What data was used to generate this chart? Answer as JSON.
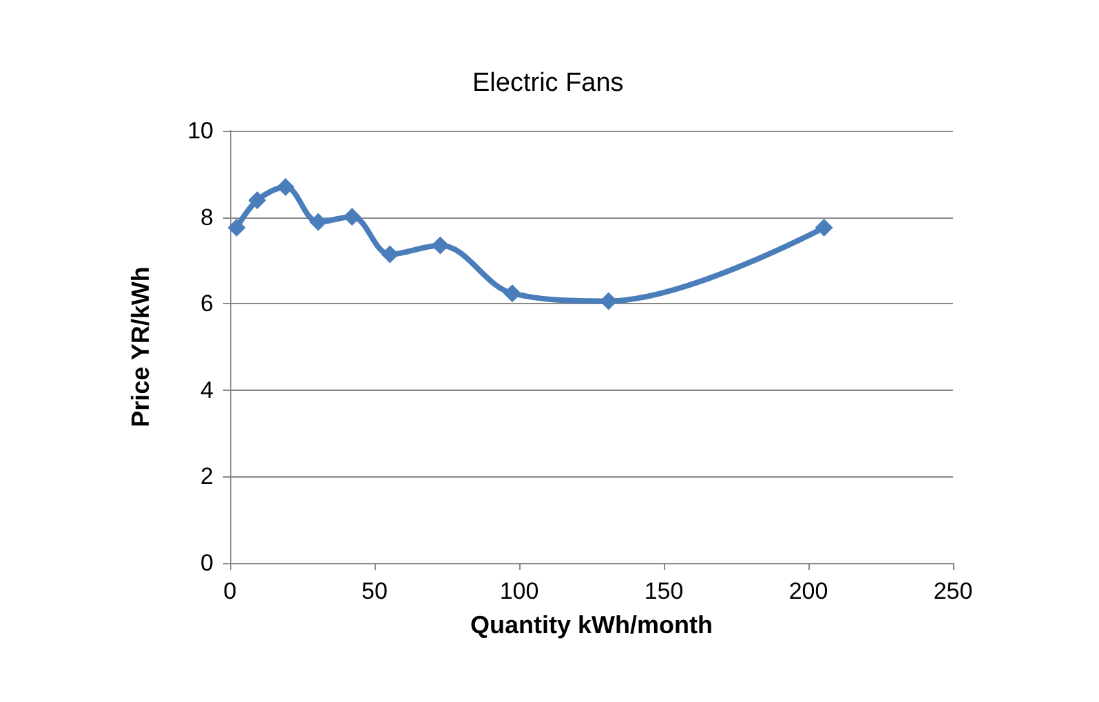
{
  "chart_data": {
    "type": "line",
    "title": "Electric Fans",
    "xlabel": "Quantity kWh/month",
    "ylabel": "Price YR/kWh",
    "x": [
      2.3,
      9.4,
      19.2,
      30.5,
      42.2,
      55.3,
      72.7,
      97.6,
      130.9,
      205.4
    ],
    "series": [
      {
        "color": "#4a7ebb",
        "values": [
          7.76,
          8.39,
          8.7,
          7.89,
          8.01,
          7.14,
          7.35,
          6.24,
          6.06,
          7.76
        ]
      }
    ],
    "xlim": [
      0,
      250
    ],
    "xticks": [
      0,
      50,
      100,
      150,
      200,
      250
    ],
    "ylim": [
      0,
      10
    ],
    "yticks": [
      0,
      2,
      4,
      6,
      8,
      10
    ],
    "grid": "y",
    "marker": "diamond",
    "line_style": "solid"
  }
}
